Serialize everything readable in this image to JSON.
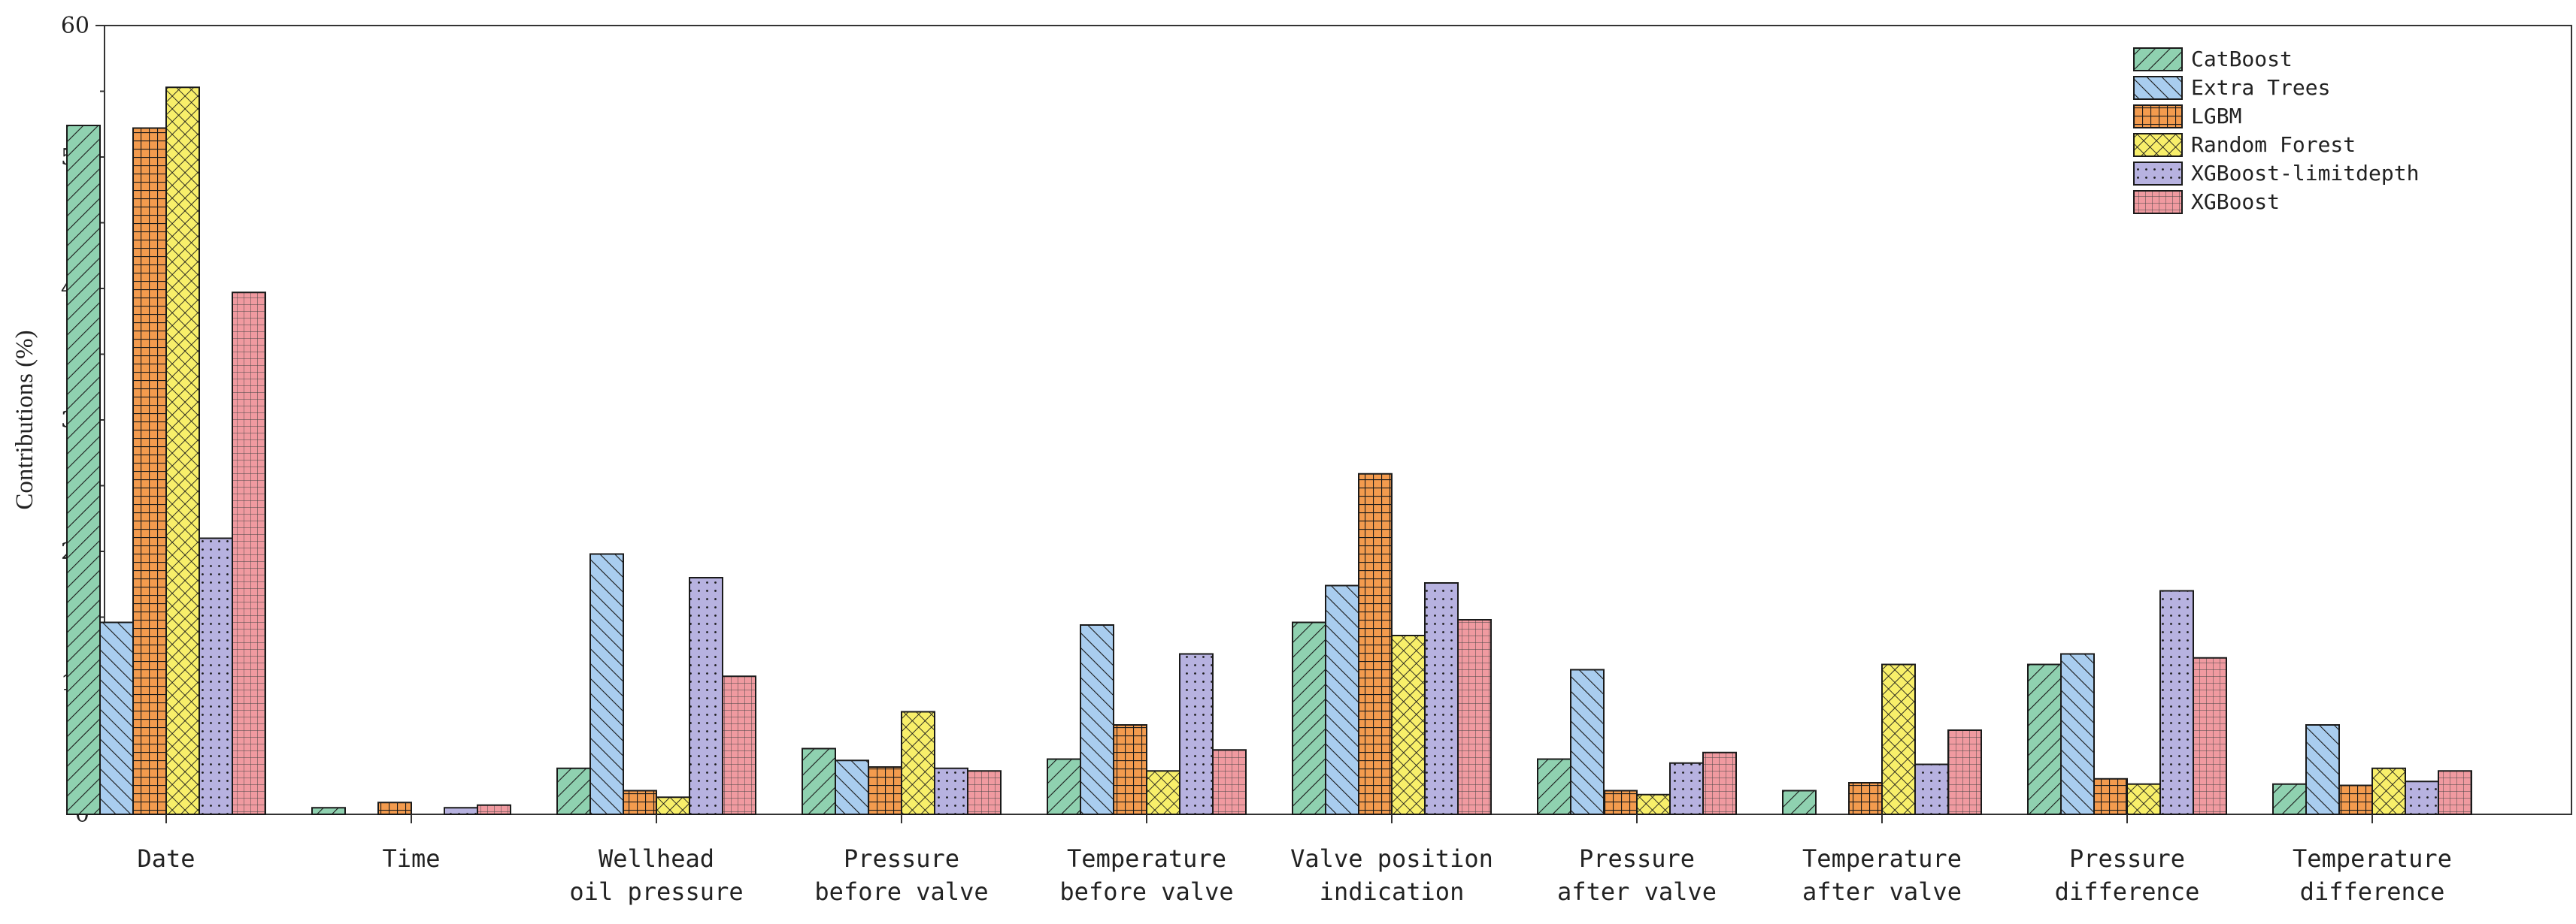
{
  "chart_data": {
    "type": "bar",
    "ylabel": "Contributions (%)",
    "xlabel": "",
    "ylim": [
      0,
      60
    ],
    "yticks": [
      0,
      10,
      20,
      30,
      40,
      50,
      60
    ],
    "grid": false,
    "legend_position": "top-right",
    "categories": [
      [
        "Date"
      ],
      [
        "Time"
      ],
      [
        "Wellhead",
        "oil pressure"
      ],
      [
        "Pressure",
        "before valve"
      ],
      [
        "Temperature",
        "before valve"
      ],
      [
        "Valve position",
        "indication"
      ],
      [
        "Pressure",
        "after valve"
      ],
      [
        "Temperature",
        "after valve"
      ],
      [
        "Pressure",
        "difference"
      ],
      [
        "Temperature",
        "difference"
      ]
    ],
    "series": [
      {
        "name": "CatBoost",
        "color": "#8fd1b0",
        "pattern": "diag-right",
        "values": [
          52.4,
          0.5,
          3.5,
          5.0,
          4.2,
          14.6,
          4.2,
          1.8,
          11.4,
          2.3
        ]
      },
      {
        "name": "Extra Trees",
        "color": "#a9cdef",
        "pattern": "diag-left",
        "values": [
          14.6,
          0,
          19.8,
          4.1,
          14.4,
          17.4,
          11.0,
          0,
          12.2,
          6.8
        ]
      },
      {
        "name": "LGBM",
        "color": "#f39b4e",
        "pattern": "grid",
        "values": [
          52.2,
          0.9,
          1.8,
          3.6,
          6.8,
          25.9,
          1.8,
          2.4,
          2.7,
          2.2
        ]
      },
      {
        "name": "Random Forest",
        "color": "#f8ef6a",
        "pattern": "crosshatch",
        "values": [
          55.3,
          0,
          1.3,
          7.8,
          3.3,
          13.6,
          1.5,
          11.4,
          2.3,
          3.5
        ]
      },
      {
        "name": "XGBoost-limitdepth",
        "color": "#b7b2e0",
        "pattern": "dots",
        "values": [
          21.0,
          0.5,
          18.0,
          3.5,
          12.2,
          17.6,
          3.9,
          3.8,
          17.0,
          2.5
        ]
      },
      {
        "name": "XGBoost",
        "color": "#f09aa0",
        "pattern": "fine-grid",
        "values": [
          39.7,
          0.7,
          10.5,
          3.3,
          4.9,
          14.8,
          4.7,
          6.4,
          11.9,
          3.3
        ]
      }
    ]
  }
}
